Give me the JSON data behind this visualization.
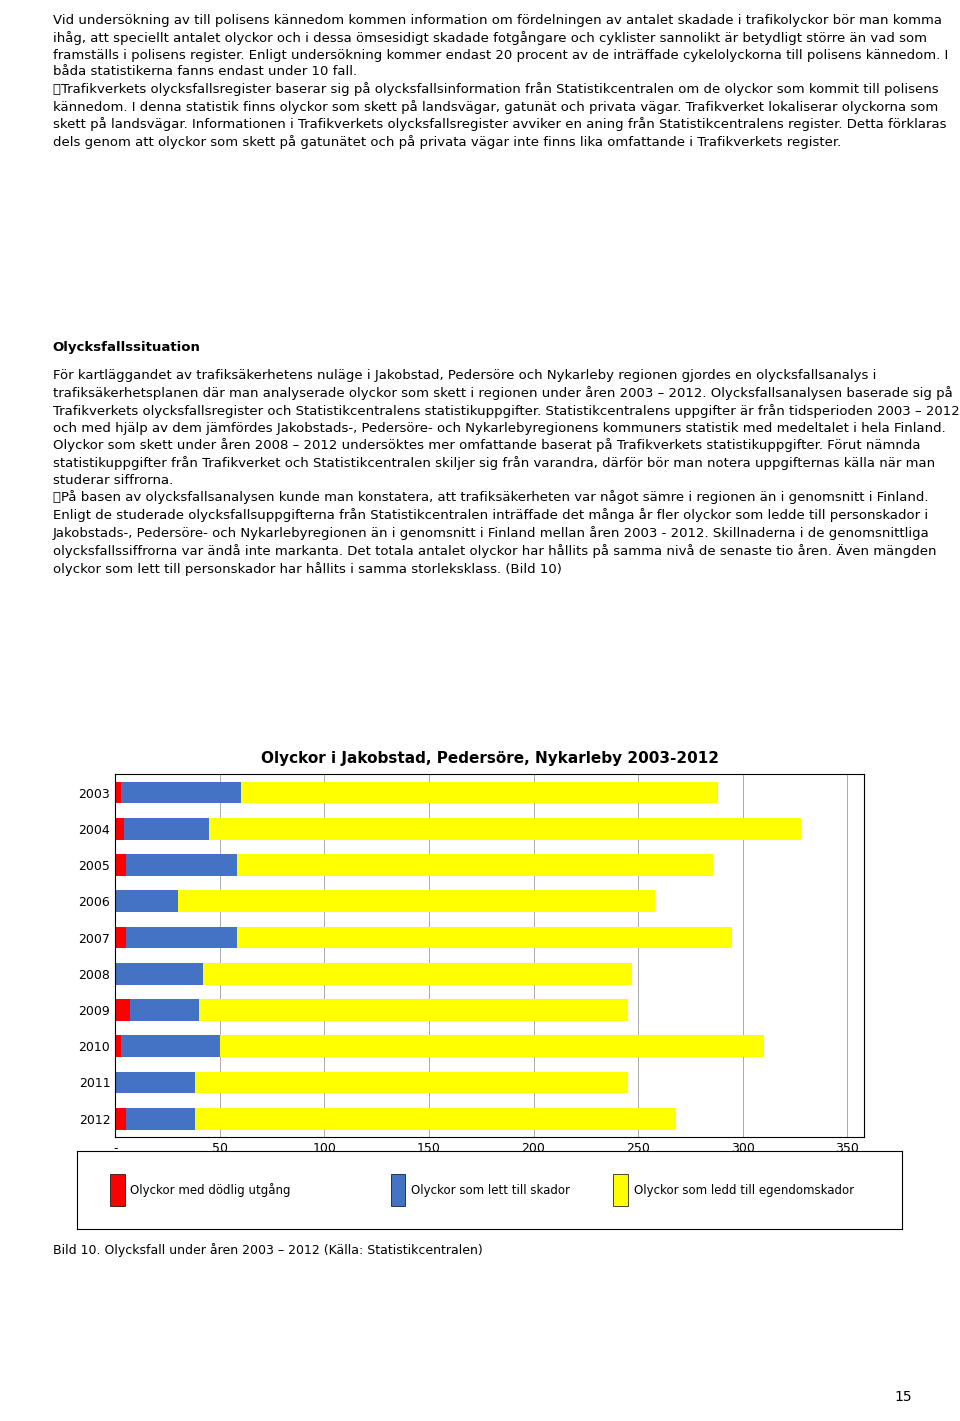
{
  "title": "Olyckor i Jakobstad, Pedersöre, Nykarleby 2003-2012",
  "years": [
    "2012",
    "2011",
    "2010",
    "2009",
    "2008",
    "2007",
    "2006",
    "2005",
    "2004",
    "2003"
  ],
  "fatal": [
    5,
    0,
    3,
    7,
    0,
    5,
    0,
    5,
    4,
    3
  ],
  "injury": [
    33,
    38,
    47,
    33,
    42,
    53,
    30,
    53,
    41,
    57
  ],
  "property": [
    230,
    207,
    260,
    205,
    205,
    237,
    228,
    228,
    283,
    228
  ],
  "color_fatal": "#FF0000",
  "color_injury": "#4472C4",
  "color_property": "#FFFF00",
  "xlabel_ticks": [
    0,
    50,
    100,
    150,
    200,
    250,
    300,
    350
  ],
  "xlabel_tick_labels": [
    "-",
    "50",
    "100",
    "150",
    "200",
    "250",
    "300",
    "350"
  ],
  "xlim": [
    0,
    358
  ],
  "legend_fatal": "Olyckor med dödlig utgång",
  "legend_injury": "Olyckor som lett till skador",
  "legend_property": "Olyckor som ledd till egendomskador",
  "caption": "Bild 10. Olycksfall under åren 2003 – 2012 (Källa: Statistikcentralen)",
  "page_number": "15",
  "bg_color": "#FFFFFF",
  "para1": "Vid undersökning av till polisens kännedom kommen information om fördelningen av antalet skadade i trafikolyckor bör man komma ihåg, att speciellt antalet olyckor och i dessa ömsesidigt skadade fotgångare och cyklister sannolikt är betydligt större än vad som framställs i polisens register. Enligt undersökning kommer endast 20 procent av de inträffade cykelolyckorna till polisens kännedom. I båda statistikerna fanns endast under 10 fall.\n\tTrafikverkets olycksfallsregister baserar sig på olycksfallsinformation från Statistikcentralen om de olyckor som kommit till polisens kännedom. I denna statistik finns olyckor som skett på landsvägar, gatunät och privata vägar. Trafikverket lokaliserar olyckorna som skett på landsvägar. Informationen i Trafikverkets olycksfallsregister avviker en aning från Statistikcentralens register. Detta förklaras dels genom att olyckor som skett på gatunätet och på privata vägar inte finns lika omfattande i Trafikverkets register.",
  "heading2": "Olycksfallssituation",
  "para2": "För kartläggandet av trafiksäkerhetens nuläge i Jakobstad, Pedersöre och Nykarleby regionen gjordes en olycksfallsanalys i trafiksäkerhetsplanen där man analyserade olyckor som skett i regionen under åren 2003 – 2012. Olycksfallsanalysen baserade sig på Trafikverkets olycksfallsregister och Statistikcentralens statistikuppgifter. Statistikcentralens uppgifter är från tidsperioden 2003 – 2012 och med hjälp av dem jämfördes Jakobstads-, Pedersöre- och Nykarlebyregionens kommuners statistik med medeltalet i hela Finland. Olyckor som skett under åren 2008 – 2012 undersöktes mer omfattande baserat på Trafikverkets statistikuppgifter. Förut nämnda statistikuppgifter från Trafikverket och Statistikcentralen skiljer sig från varandra, därför bör man notera uppgifternas källa när man studerar siffrorna.\n\tPå basen av olycksfallsanalysen kunde man konstatera, att trafiksäkerheten var något sämre i regionen än i genomsnitt i Finland. Enligt de studerade olycksfallsuppgifterna från Statistikcentralen inträffade det många år fler olyckor som ledde till personskador i Jakobstads-, Pedersöre- och Nykarlebyregionen än i genomsnitt i Finland mellan åren 2003 - 2012. Skillnaderna i de genomsnittliga olycksfallssiffrorna var ändå inte markanta. Det totala antalet olyckor har hållits på samma nivå de senaste tio åren. Även mängden olyckor som lett till personskador har hållits i samma storleksklass. (Bild 10)"
}
